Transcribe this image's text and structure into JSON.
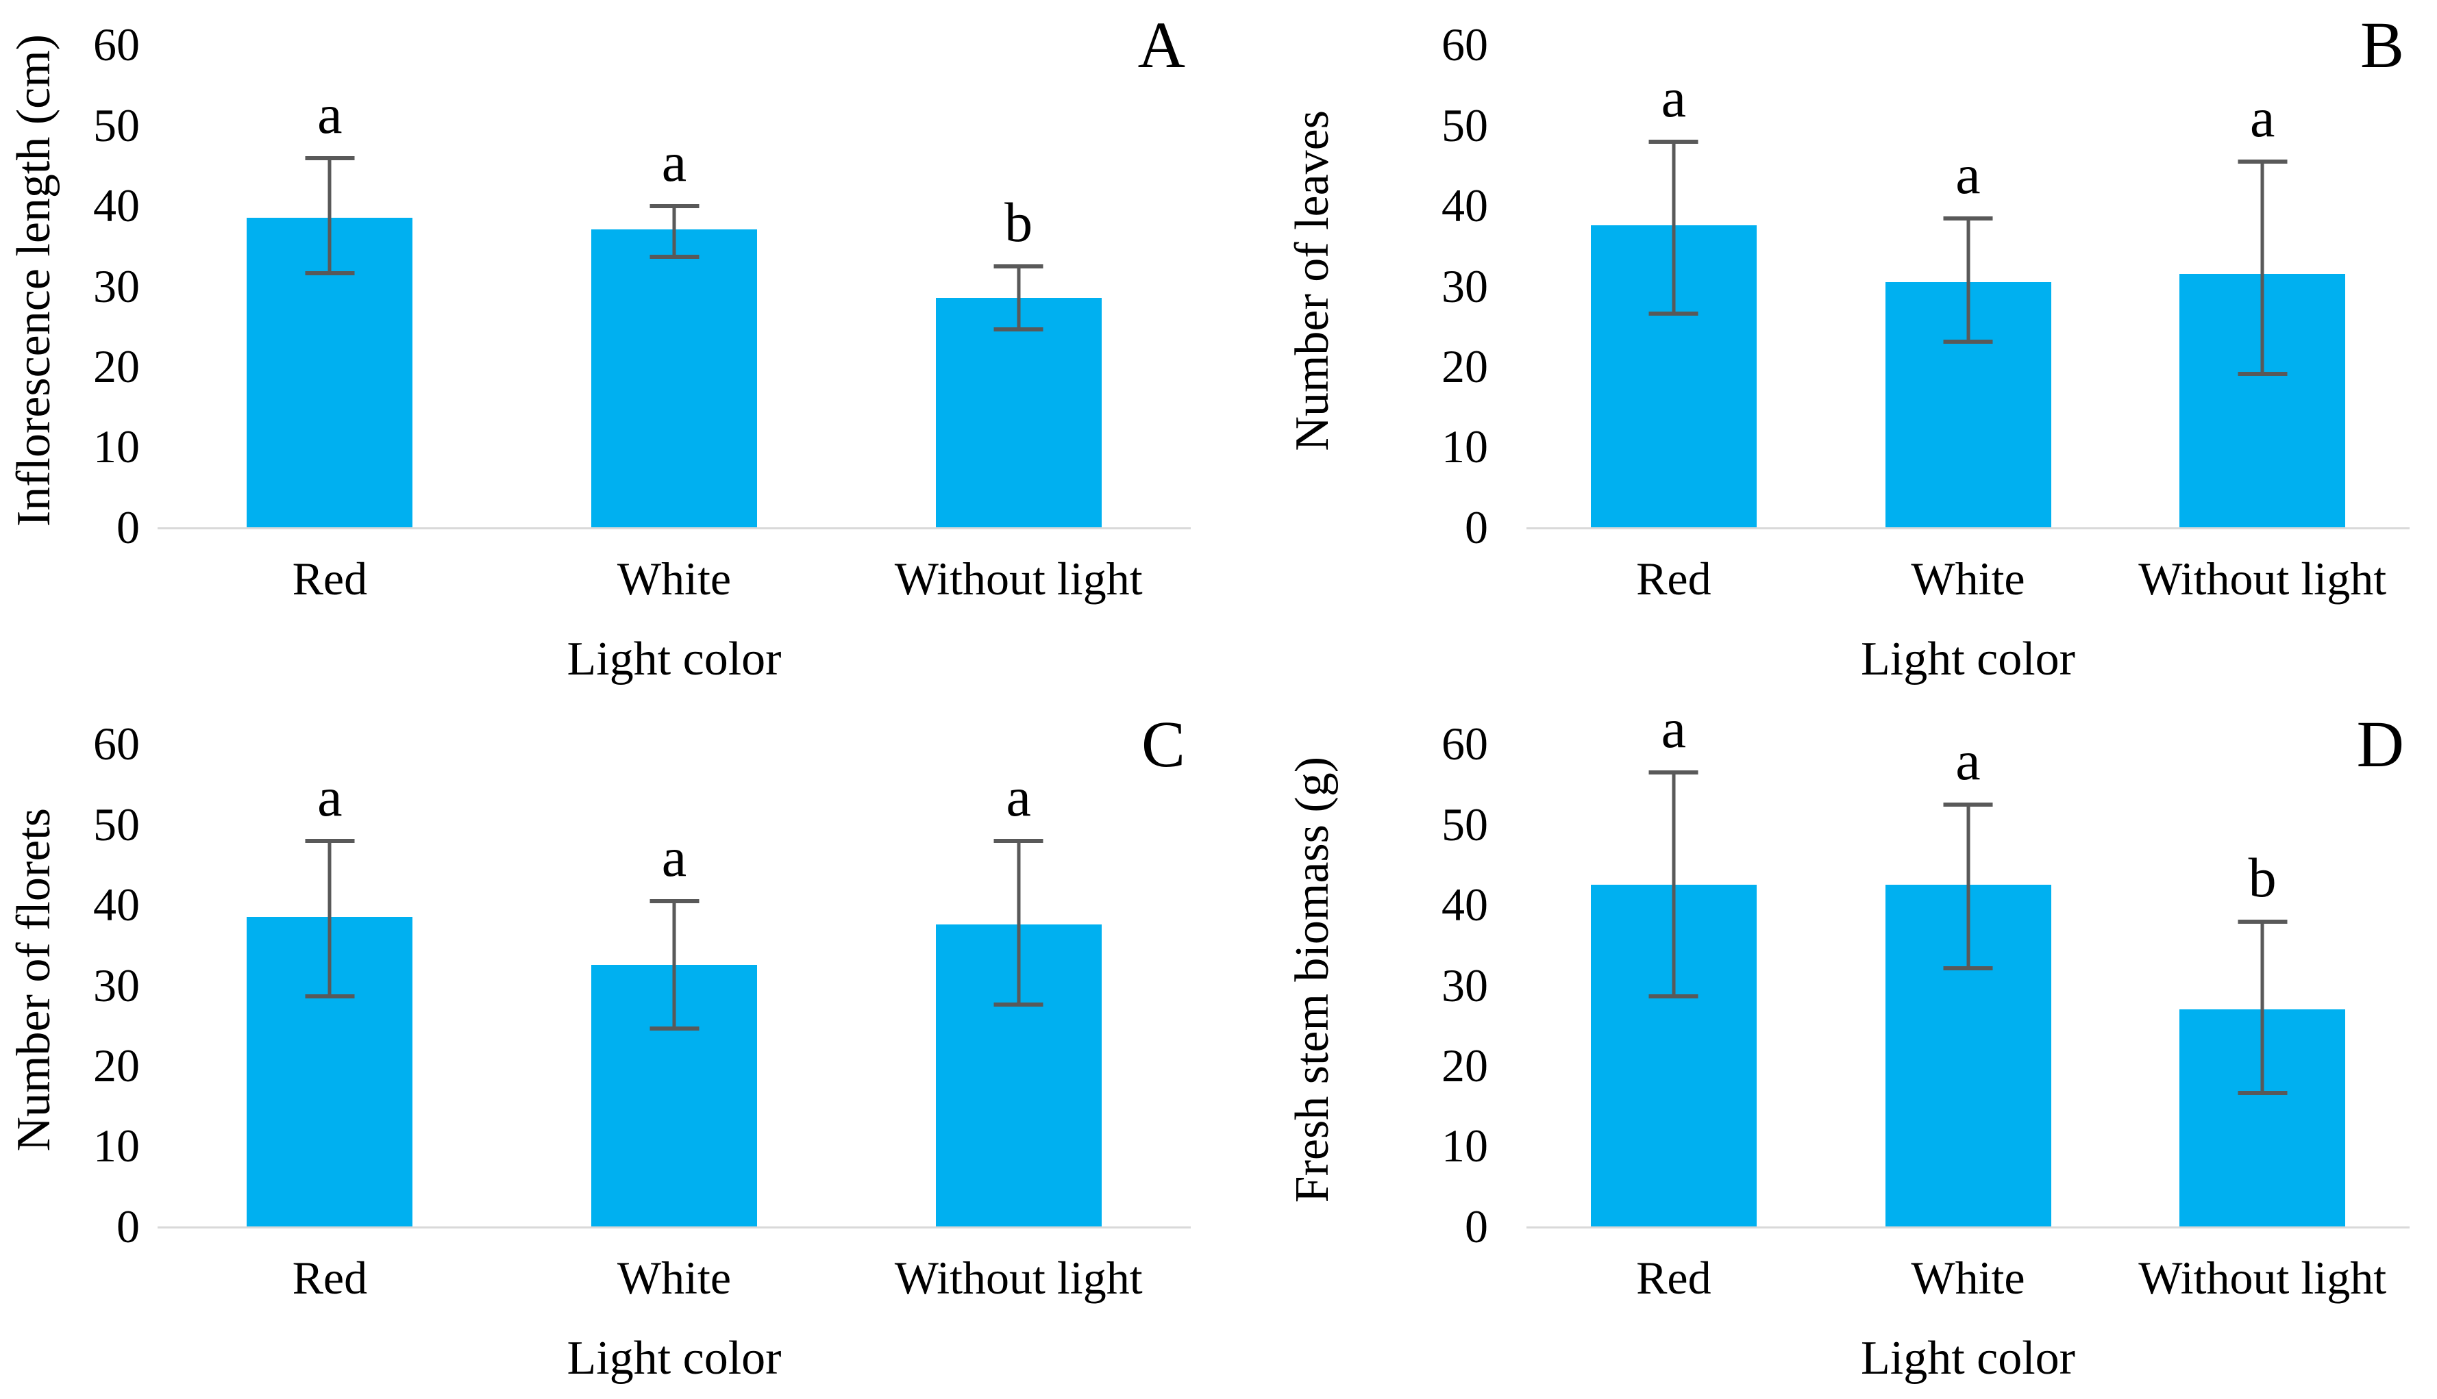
{
  "style": {
    "bar_color": "#00b0f0",
    "error_color": "#595959",
    "axis_color": "#d9d9d9",
    "text_color": "#000000"
  },
  "chart_data": [
    {
      "type": "bar",
      "panel_label": "A",
      "ylabel": "Inflorescence length (cm)",
      "xlabel": "Light color",
      "categories": [
        "Red",
        "White",
        "Without light"
      ],
      "values": [
        38.5,
        37,
        28.5
      ],
      "error_low": [
        31.5,
        33.5,
        24.5
      ],
      "error_high": [
        46,
        40,
        32.5
      ],
      "sig_letters": [
        "a",
        "a",
        "b"
      ],
      "ylim": [
        0,
        60
      ],
      "yticks": [
        60,
        50,
        40,
        30,
        20,
        10,
        0
      ],
      "grid": false,
      "legend": false
    },
    {
      "type": "bar",
      "panel_label": "B",
      "ylabel": "Number of leaves",
      "xlabel": "Light color",
      "categories": [
        "Red",
        "White",
        "Without light"
      ],
      "values": [
        37.5,
        30.5,
        31.5
      ],
      "error_low": [
        26.5,
        23,
        19
      ],
      "error_high": [
        48,
        38.5,
        45.5
      ],
      "sig_letters": [
        "a",
        "a",
        "a"
      ],
      "ylim": [
        0,
        60
      ],
      "yticks": [
        60,
        50,
        40,
        30,
        20,
        10,
        0
      ],
      "grid": false,
      "legend": false
    },
    {
      "type": "bar",
      "panel_label": "C",
      "ylabel": "Number of florets",
      "xlabel": "Light color",
      "categories": [
        "Red",
        "White",
        "Without light"
      ],
      "values": [
        38.5,
        32.5,
        37.5
      ],
      "error_low": [
        28.5,
        24.5,
        27.5
      ],
      "error_high": [
        48,
        40.5,
        48
      ],
      "sig_letters": [
        "a",
        "a",
        "a"
      ],
      "ylim": [
        0,
        60
      ],
      "yticks": [
        60,
        50,
        40,
        30,
        20,
        10,
        0
      ],
      "grid": false,
      "legend": false
    },
    {
      "type": "bar",
      "panel_label": "D",
      "ylabel": "Fresh stem biomass (g)",
      "xlabel": "Light color",
      "categories": [
        "Red",
        "White",
        "Without light"
      ],
      "values": [
        42.5,
        42.5,
        27
      ],
      "error_low": [
        28.5,
        32,
        16.5
      ],
      "error_high": [
        56.5,
        52.5,
        38
      ],
      "sig_letters": [
        "a",
        "a",
        "b"
      ],
      "ylim": [
        0,
        60
      ],
      "yticks": [
        60,
        50,
        40,
        30,
        20,
        10,
        0
      ],
      "grid": false,
      "legend": false
    }
  ]
}
